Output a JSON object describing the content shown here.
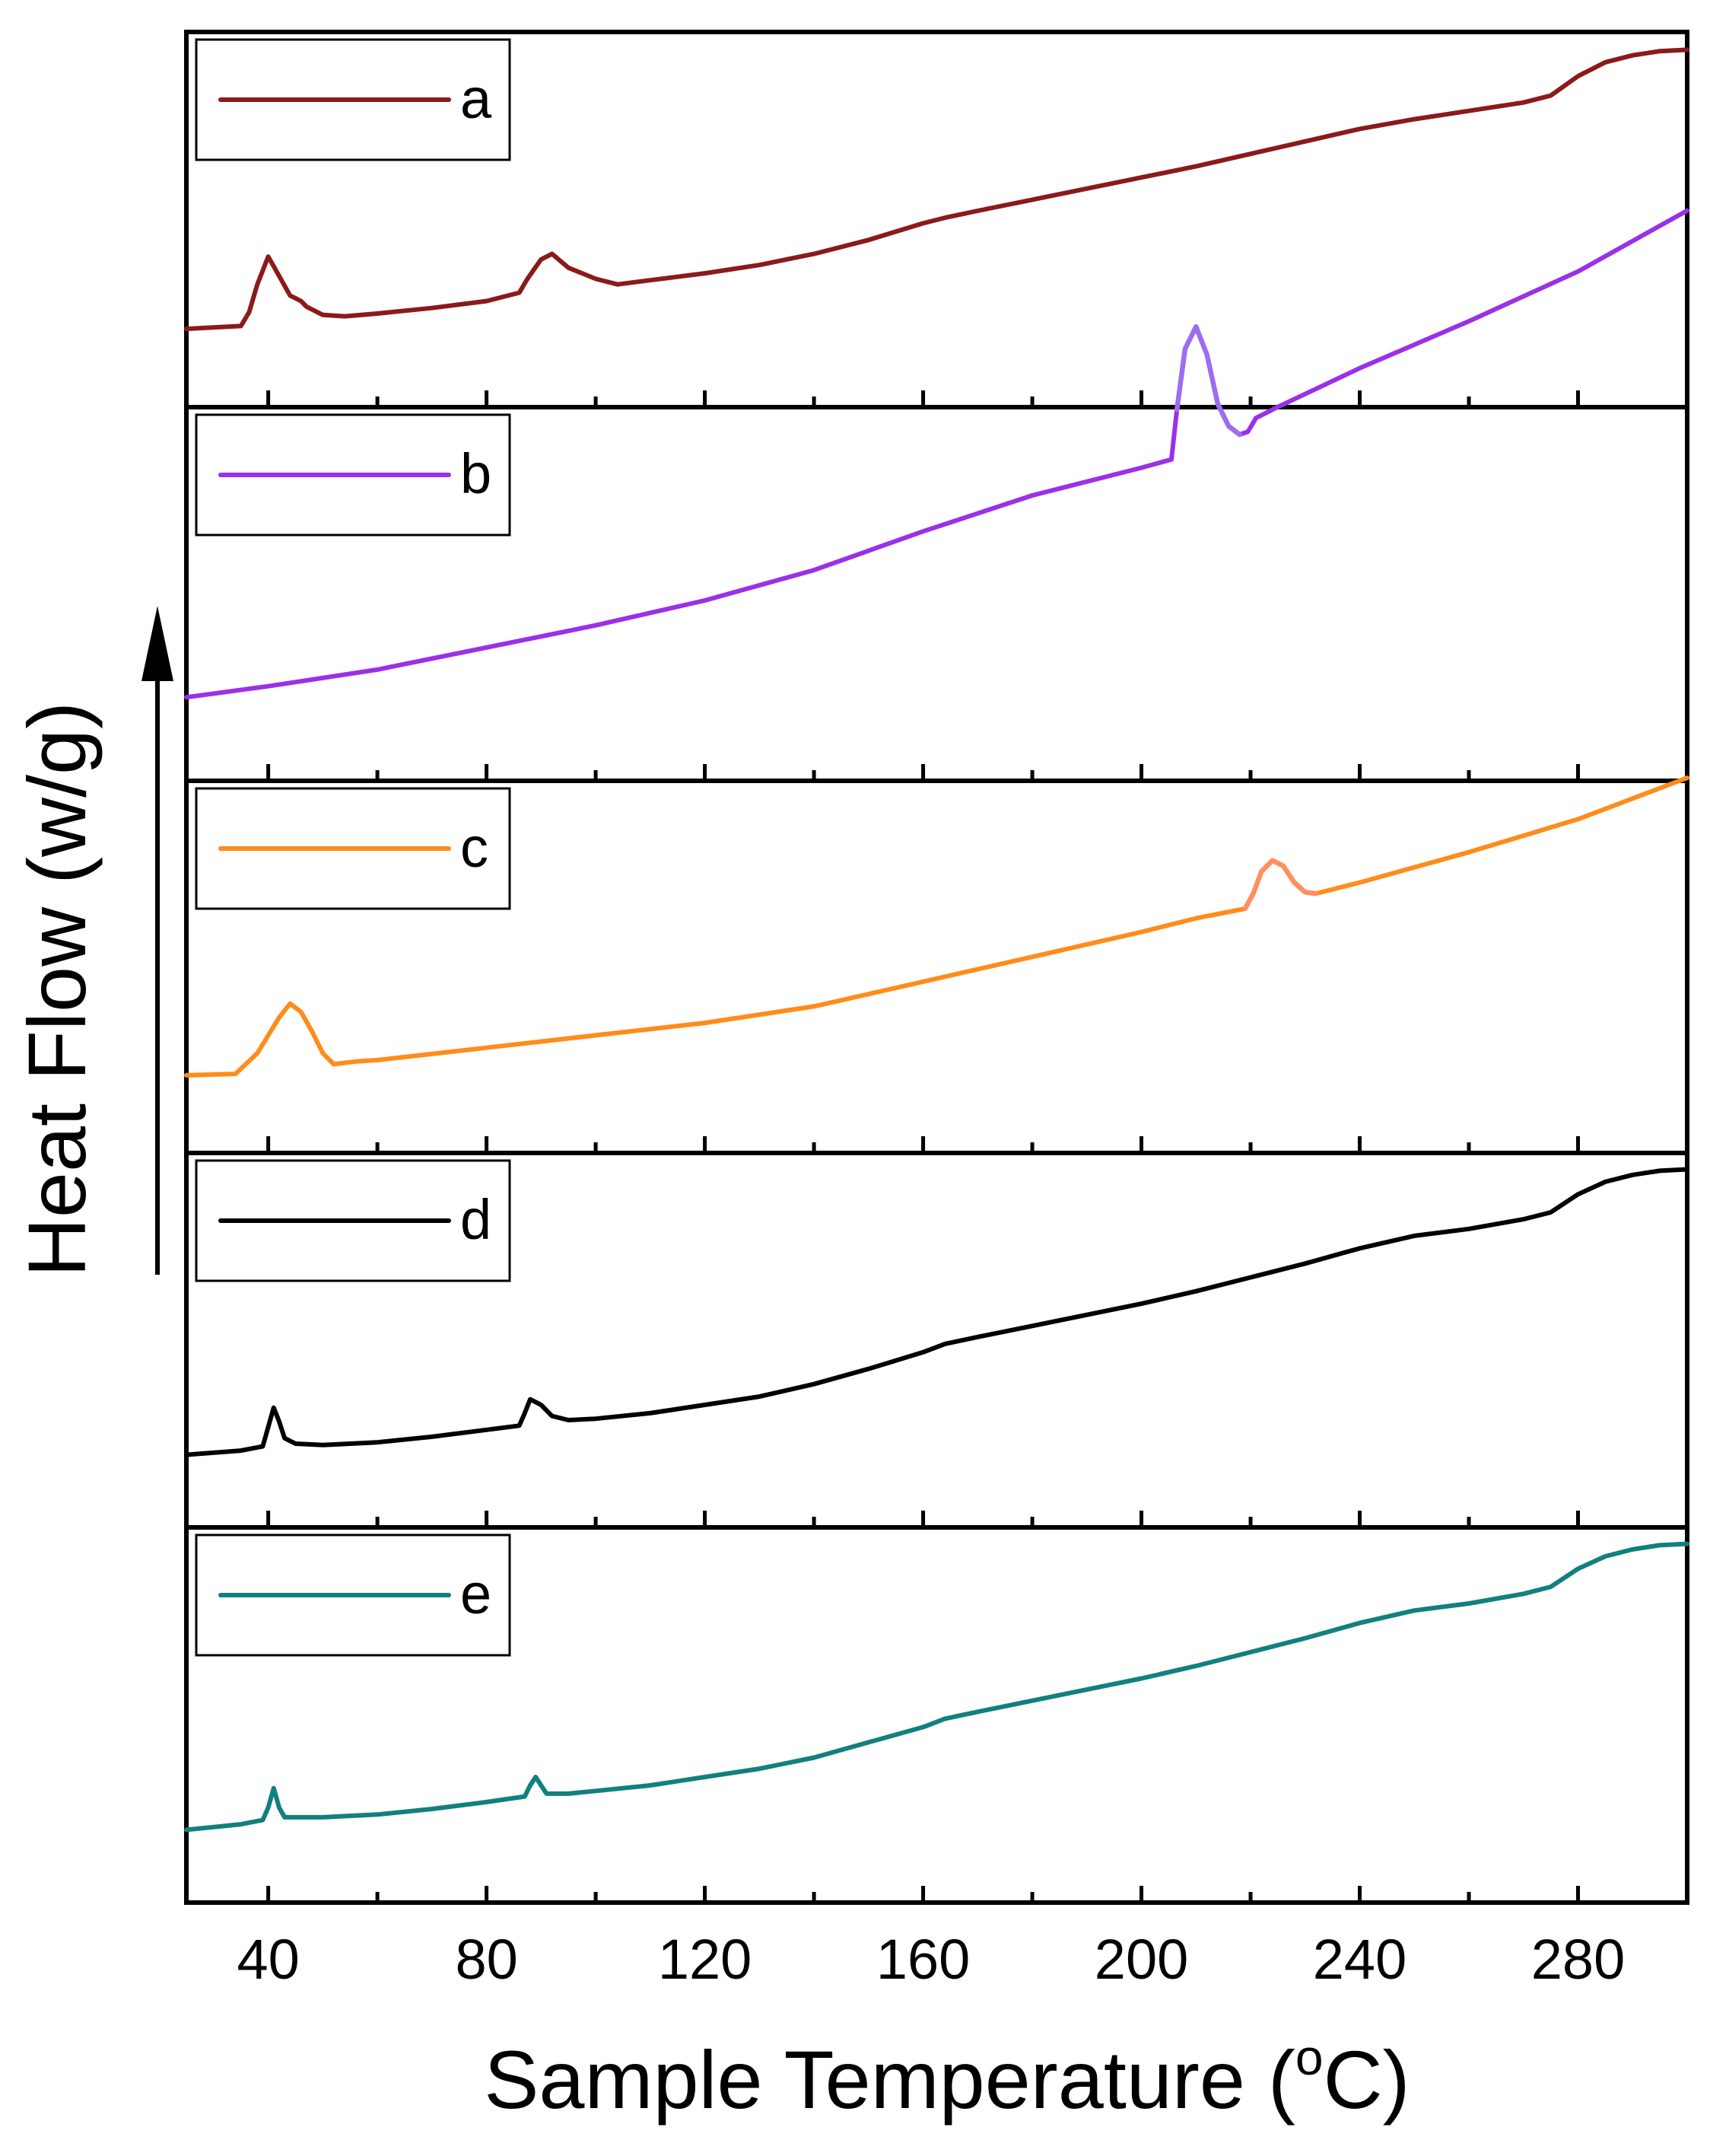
{
  "chart_data": {
    "type": "line",
    "layout": "stacked-panels",
    "xlabel": "Sample Temperature",
    "xlabel_unit_sup": "o",
    "xlabel_unit": "C",
    "ylabel": "Heat Flow (w/g)",
    "xlim": [
      25,
      300
    ],
    "ylim": [
      0,
      1
    ],
    "x_ticks_major": [
      40,
      80,
      120,
      160,
      200,
      240,
      280
    ],
    "x_ticks_minor": [
      60,
      100,
      140,
      180,
      220,
      260
    ],
    "grid": false,
    "panels": [
      {
        "legend": "a",
        "color": "#8b1a1a",
        "series": [
          [
            25,
            0.12
          ],
          [
            35,
            0.13
          ],
          [
            36.5,
            0.18
          ],
          [
            38,
            0.28
          ],
          [
            40,
            0.38
          ],
          [
            42,
            0.31
          ],
          [
            44,
            0.24
          ],
          [
            46,
            0.22
          ],
          [
            47,
            0.2
          ],
          [
            50,
            0.17
          ],
          [
            54,
            0.165
          ],
          [
            60,
            0.175
          ],
          [
            70,
            0.195
          ],
          [
            80,
            0.22
          ],
          [
            86,
            0.25
          ],
          [
            87.5,
            0.3
          ],
          [
            90,
            0.37
          ],
          [
            92,
            0.39
          ],
          [
            95,
            0.34
          ],
          [
            100,
            0.3
          ],
          [
            104,
            0.28
          ],
          [
            110,
            0.295
          ],
          [
            120,
            0.32
          ],
          [
            130,
            0.35
          ],
          [
            140,
            0.39
          ],
          [
            150,
            0.44
          ],
          [
            160,
            0.5
          ],
          [
            164,
            0.52
          ],
          [
            170,
            0.545
          ],
          [
            180,
            0.585
          ],
          [
            190,
            0.625
          ],
          [
            200,
            0.665
          ],
          [
            210,
            0.705
          ],
          [
            220,
            0.75
          ],
          [
            230,
            0.795
          ],
          [
            240,
            0.84
          ],
          [
            250,
            0.875
          ],
          [
            260,
            0.905
          ],
          [
            270,
            0.935
          ],
          [
            275,
            0.96
          ],
          [
            280,
            1.03
          ],
          [
            285,
            1.08
          ],
          [
            290,
            1.105
          ],
          [
            295,
            1.12
          ],
          [
            300,
            1.125
          ]
        ]
      },
      {
        "legend": "b",
        "color": "#9b30e8",
        "peak_color": "#9d6df0",
        "peak_range": [
          206,
          219
        ],
        "series": [
          [
            25,
            0.14
          ],
          [
            40,
            0.18
          ],
          [
            60,
            0.24
          ],
          [
            80,
            0.32
          ],
          [
            100,
            0.4
          ],
          [
            120,
            0.49
          ],
          [
            140,
            0.6
          ],
          [
            160,
            0.74
          ],
          [
            180,
            0.87
          ],
          [
            200,
            0.97
          ],
          [
            205.5,
            1.0
          ],
          [
            206.5,
            1.18
          ],
          [
            208,
            1.4
          ],
          [
            210,
            1.48
          ],
          [
            212,
            1.38
          ],
          [
            214,
            1.2
          ],
          [
            216,
            1.12
          ],
          [
            218,
            1.09
          ],
          [
            219.5,
            1.1
          ],
          [
            221,
            1.15
          ],
          [
            225,
            1.19
          ],
          [
            240,
            1.33
          ],
          [
            260,
            1.5
          ],
          [
            280,
            1.68
          ],
          [
            300,
            1.9
          ]
        ]
      },
      {
        "legend": "c",
        "color": "#ff8c1a",
        "peak_color": "#ff8f5e",
        "peak_range": [
          219,
          232
        ],
        "series": [
          [
            25,
            0.12
          ],
          [
            34,
            0.125
          ],
          [
            38,
            0.2
          ],
          [
            42,
            0.33
          ],
          [
            44,
            0.38
          ],
          [
            46,
            0.35
          ],
          [
            48,
            0.28
          ],
          [
            50,
            0.2
          ],
          [
            52,
            0.16
          ],
          [
            56,
            0.17
          ],
          [
            60,
            0.175
          ],
          [
            80,
            0.22
          ],
          [
            100,
            0.265
          ],
          [
            120,
            0.31
          ],
          [
            140,
            0.37
          ],
          [
            160,
            0.46
          ],
          [
            180,
            0.55
          ],
          [
            200,
            0.64
          ],
          [
            210,
            0.69
          ],
          [
            219,
            0.725
          ],
          [
            220.5,
            0.78
          ],
          [
            222,
            0.86
          ],
          [
            224,
            0.9
          ],
          [
            226,
            0.88
          ],
          [
            228,
            0.82
          ],
          [
            230,
            0.785
          ],
          [
            232,
            0.78
          ],
          [
            240,
            0.82
          ],
          [
            260,
            0.93
          ],
          [
            280,
            1.05
          ],
          [
            300,
            1.2
          ]
        ]
      },
      {
        "legend": "d",
        "color": "#000000",
        "series": [
          [
            25,
            0.1
          ],
          [
            35,
            0.115
          ],
          [
            39,
            0.13
          ],
          [
            40,
            0.2
          ],
          [
            41,
            0.27
          ],
          [
            42,
            0.22
          ],
          [
            43,
            0.16
          ],
          [
            45,
            0.14
          ],
          [
            50,
            0.135
          ],
          [
            60,
            0.145
          ],
          [
            70,
            0.165
          ],
          [
            80,
            0.19
          ],
          [
            86,
            0.205
          ],
          [
            87,
            0.25
          ],
          [
            88,
            0.3
          ],
          [
            90,
            0.28
          ],
          [
            92,
            0.24
          ],
          [
            95,
            0.225
          ],
          [
            100,
            0.23
          ],
          [
            110,
            0.25
          ],
          [
            120,
            0.28
          ],
          [
            130,
            0.31
          ],
          [
            140,
            0.355
          ],
          [
            150,
            0.41
          ],
          [
            160,
            0.47
          ],
          [
            164,
            0.5
          ],
          [
            170,
            0.525
          ],
          [
            180,
            0.565
          ],
          [
            190,
            0.605
          ],
          [
            200,
            0.645
          ],
          [
            210,
            0.69
          ],
          [
            220,
            0.74
          ],
          [
            230,
            0.79
          ],
          [
            240,
            0.845
          ],
          [
            250,
            0.89
          ],
          [
            260,
            0.915
          ],
          [
            270,
            0.95
          ],
          [
            275,
            0.975
          ],
          [
            280,
            1.04
          ],
          [
            285,
            1.085
          ],
          [
            290,
            1.11
          ],
          [
            295,
            1.125
          ],
          [
            300,
            1.13
          ]
        ]
      },
      {
        "legend": "e",
        "color": "#12807e",
        "series": [
          [
            25,
            0.1
          ],
          [
            35,
            0.12
          ],
          [
            39,
            0.135
          ],
          [
            40,
            0.18
          ],
          [
            41,
            0.25
          ],
          [
            42,
            0.18
          ],
          [
            43,
            0.145
          ],
          [
            50,
            0.145
          ],
          [
            60,
            0.155
          ],
          [
            70,
            0.175
          ],
          [
            80,
            0.2
          ],
          [
            87,
            0.22
          ],
          [
            88,
            0.26
          ],
          [
            89,
            0.29
          ],
          [
            90,
            0.26
          ],
          [
            91,
            0.23
          ],
          [
            95,
            0.23
          ],
          [
            100,
            0.24
          ],
          [
            110,
            0.26
          ],
          [
            120,
            0.29
          ],
          [
            130,
            0.32
          ],
          [
            140,
            0.36
          ],
          [
            150,
            0.415
          ],
          [
            160,
            0.47
          ],
          [
            164,
            0.5
          ],
          [
            170,
            0.525
          ],
          [
            180,
            0.565
          ],
          [
            190,
            0.605
          ],
          [
            200,
            0.645
          ],
          [
            210,
            0.69
          ],
          [
            220,
            0.74
          ],
          [
            230,
            0.79
          ],
          [
            240,
            0.845
          ],
          [
            250,
            0.89
          ],
          [
            260,
            0.915
          ],
          [
            270,
            0.95
          ],
          [
            275,
            0.975
          ],
          [
            280,
            1.04
          ],
          [
            285,
            1.085
          ],
          [
            290,
            1.11
          ],
          [
            295,
            1.125
          ],
          [
            300,
            1.13
          ]
        ]
      }
    ]
  }
}
